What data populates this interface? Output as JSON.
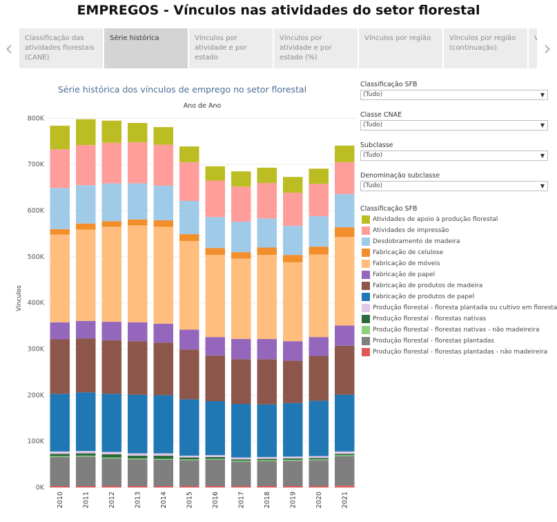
{
  "page": {
    "title": "EMPREGOS - Vínculos nas atividades do setor florestal"
  },
  "tabs": [
    {
      "label": "Classificação das atividades florestais (CANE)",
      "active": false
    },
    {
      "label": "Série histórica",
      "active": true
    },
    {
      "label": "Vínculos por atividade e por estado",
      "active": false
    },
    {
      "label": "Vínculos por atividade e por estado (%)",
      "active": false
    },
    {
      "label": "Vínculos por região",
      "active": false
    },
    {
      "label": "Vínculos por região (continuação)",
      "active": false
    },
    {
      "label": "Vín",
      "active": false
    }
  ],
  "nav": {
    "prev_glyph": "‹",
    "next_glyph": "›"
  },
  "filters": [
    {
      "label": "Classificação SFB",
      "value": "(Tudo)"
    },
    {
      "label": "Classe CNAE",
      "value": "(Tudo)"
    },
    {
      "label": "Subclasse",
      "value": "(Tudo)"
    },
    {
      "label": "Denominação subclasse",
      "value": "(Tudo)"
    }
  ],
  "legend": {
    "title": "Classificação SFB"
  },
  "chart_data": {
    "type": "bar",
    "stacked": true,
    "title": "Série histórica dos vínculos de emprego no setor florestal",
    "column_header": "Ano de Ano",
    "ylabel": "Vínculos",
    "xlabel": "",
    "ylim": [
      0,
      820000
    ],
    "yticks": [
      0,
      100000,
      200000,
      300000,
      400000,
      500000,
      600000,
      700000,
      800000
    ],
    "ytick_labels": [
      "0K",
      "100K",
      "200K",
      "300K",
      "400K",
      "500K",
      "600K",
      "700K",
      "800K"
    ],
    "grid": true,
    "legend_position": "right",
    "categories": [
      "2010",
      "2011",
      "2012",
      "2013",
      "2014",
      "2015",
      "2016",
      "2017",
      "2018",
      "2019",
      "2020",
      "2021"
    ],
    "series": [
      {
        "name": "Produção florestal - florestas plantadas - não madeireira",
        "color": "#e15759",
        "values": [
          3000,
          3000,
          3000,
          3000,
          3000,
          3000,
          3000,
          3000,
          3000,
          3000,
          3000,
          4000
        ]
      },
      {
        "name": "Produção florestal - florestas plantadas",
        "color": "#7f7f7f",
        "values": [
          63000,
          64000,
          60000,
          58000,
          57000,
          56000,
          57000,
          53000,
          54000,
          55000,
          56000,
          64000
        ]
      },
      {
        "name": "Produção florestal - florestas nativas - não madeireira",
        "color": "#8cd17d",
        "values": [
          2000,
          2000,
          2000,
          2000,
          2000,
          2000,
          2000,
          2000,
          2000,
          2000,
          2000,
          2000
        ]
      },
      {
        "name": "Produção florestal - florestas nativas",
        "color": "#2a6b3c",
        "values": [
          5000,
          5000,
          7000,
          6000,
          7000,
          4000,
          4000,
          3000,
          3000,
          3000,
          3000,
          3000
        ]
      },
      {
        "name": "Produção florestal - floresta plantada ou cultivo em floresta",
        "color": "#e3c8e6",
        "values": [
          5000,
          5000,
          5000,
          5000,
          5000,
          4000,
          4000,
          4000,
          4000,
          4000,
          4000,
          5000
        ]
      },
      {
        "name": "Fabricação de produtos de papel",
        "color": "#1f77b4",
        "values": [
          125000,
          127000,
          126000,
          127000,
          126000,
          122000,
          117000,
          116000,
          114000,
          116000,
          120000,
          123000
        ]
      },
      {
        "name": "Fabricação de produtos de madeira",
        "color": "#8c564b",
        "values": [
          118000,
          117000,
          116000,
          116000,
          114000,
          108000,
          99000,
          97000,
          98000,
          92000,
          97000,
          106000
        ]
      },
      {
        "name": "Fabricação de papel",
        "color": "#9467bd",
        "values": [
          37000,
          38000,
          40000,
          41000,
          41000,
          43000,
          40000,
          44000,
          44000,
          42000,
          41000,
          44000
        ]
      },
      {
        "name": "Fabricação de móveis",
        "color": "#ffbe7d",
        "values": [
          190000,
          198000,
          206000,
          210000,
          210000,
          192000,
          178000,
          174000,
          182000,
          171000,
          179000,
          192000
        ]
      },
      {
        "name": "Fabricação de celulose",
        "color": "#f28e2b",
        "values": [
          12000,
          13000,
          12000,
          13000,
          14000,
          15000,
          15000,
          14000,
          16000,
          16000,
          17000,
          21000
        ]
      },
      {
        "name": "Desdobramento de madeira",
        "color": "#a0cbe8",
        "values": [
          89000,
          83000,
          82000,
          78000,
          75000,
          72000,
          67000,
          66000,
          63000,
          63000,
          66000,
          72000
        ]
      },
      {
        "name": "Atividades de impressão",
        "color": "#ff9d9a",
        "values": [
          84000,
          87000,
          88000,
          89000,
          89000,
          84000,
          79000,
          76000,
          77000,
          72000,
          70000,
          69000
        ]
      },
      {
        "name": "Atividades de apoio à produção florestal",
        "color": "#bcbd22",
        "values": [
          51000,
          56000,
          48000,
          42000,
          38000,
          34000,
          31000,
          33000,
          33000,
          34000,
          33000,
          36000
        ]
      }
    ]
  }
}
